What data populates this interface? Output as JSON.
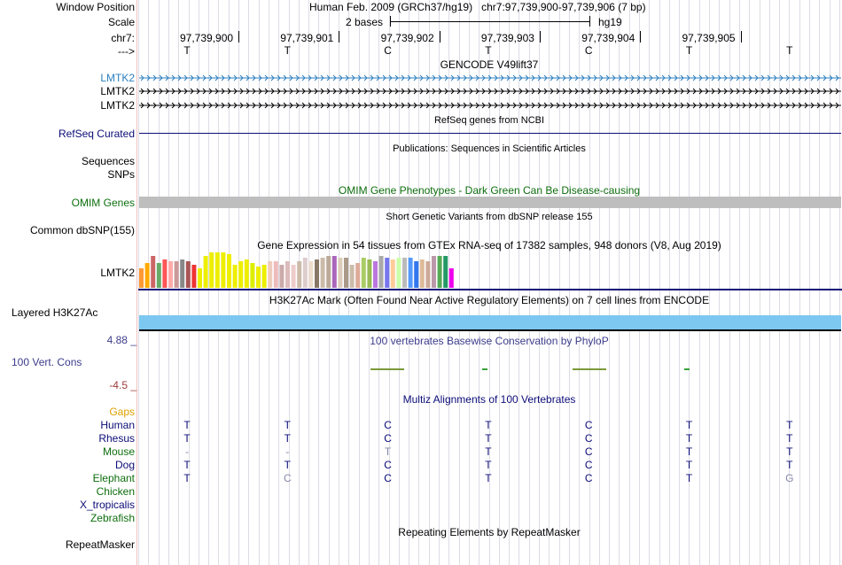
{
  "colors": {
    "gencode_blue": "#2b7fbf",
    "refseq_navy": "#0c0c78",
    "omim_green": "#0e6e0e",
    "omim_bar": "#bebebe",
    "h3k27ac_blue": "#7cc8f0",
    "cons_navy": "#3c3c8c",
    "cons_red": "#a03c3c",
    "gaps_orange": "#e0a000",
    "rhesus_navy": "#0c0c78",
    "species_green": "#0e6e0e"
  },
  "header": {
    "window_position_label": "Window Position",
    "window_position_value": "Human Feb. 2009 (GRCh37/hg19)   chr7:97,739,900-97,739,906 (7 bp)",
    "scale_label": "Scale",
    "scale_bases": "2 bases",
    "scale_assembly": "hg19",
    "chrom_label": "chr7:",
    "strand_label": "--->",
    "positions": [
      "97,739,900",
      "97,739,901",
      "97,739,902",
      "97,739,903",
      "97,739,904",
      "97,739,905"
    ],
    "bases": [
      "T",
      "T",
      "C",
      "T",
      "C",
      "T",
      "T"
    ]
  },
  "tracks": {
    "gencode_title": "GENCODE V49lift37",
    "gencode_rows": [
      "LMTK2",
      "LMTK2",
      "LMTK2"
    ],
    "refseq_title": "RefSeq genes from NCBI",
    "refseq_label": "RefSeq Curated",
    "pubs_title": "Publications: Sequences in Scientific Articles",
    "pubs_label1": "Sequences",
    "pubs_label2": "SNPs",
    "omim_title": "OMIM Gene Phenotypes - Dark Green Can Be Disease-causing",
    "omim_label": "OMIM Genes",
    "dbsnp_title": "Short Genetic Variants from dbSNP release 155",
    "dbsnp_label": "Common dbSNP(155)",
    "gtex_title": "Gene Expression in 54 tissues from GTEx RNA-seq of 17382 samples, 948 donors (V8, Aug 2019)",
    "gtex_label": "LMTK2",
    "h3k27ac_title": "H3K27Ac Mark (Often Found Near Active Regulatory Elements) on 7 cell lines from ENCODE",
    "h3k27ac_label": "Layered H3K27Ac",
    "cons_title": "100 vertebrates Basewise Conservation by PhyloP",
    "cons_label": "100 Vert. Cons",
    "cons_max": "4.88 _",
    "cons_min": "-4.5 _",
    "multiz_title": "Multiz Alignments of 100 Vertebrates",
    "repeat_title": "Repeating Elements by RepeatMasker",
    "repeat_label": "RepeatMasker"
  },
  "gtex_values": [
    0.22,
    0.28,
    0.36,
    0.28,
    0.32,
    0.3,
    0.3,
    0.32,
    0.3,
    0.26,
    0.22,
    0.36,
    0.4,
    0.4,
    0.4,
    0.38,
    0.26,
    0.3,
    0.32,
    0.28,
    0.24,
    0.26,
    0.3,
    0.3,
    0.26,
    0.3,
    0.26,
    0.3,
    0.34,
    0.3,
    0.32,
    0.34,
    0.36,
    0.36,
    0.34,
    0.34,
    0.26,
    0.28,
    0.34,
    0.32,
    0.3,
    0.36,
    0.34,
    0.32,
    0.34,
    0.34,
    0.34,
    0.3,
    0.32,
    0.3,
    0.36,
    0.36,
    0.36,
    0.22
  ],
  "gtex_colors": [
    "#ff9933",
    "#ffaa00",
    "#cc6666",
    "#66aa66",
    "#ff5555",
    "#ffaaaa",
    "#cc9999",
    "#888888",
    "#aa5555",
    "#ee3333",
    "#eeee00",
    "#eeee00",
    "#eeee00",
    "#eeee00",
    "#eeee00",
    "#eeee00",
    "#eeee00",
    "#eeee00",
    "#eeee00",
    "#ddee00",
    "#eeee00",
    "#eeee00",
    "#eeccbb",
    "#eebbbb",
    "#ccaaaa",
    "#ddbbbb",
    "#eecccc",
    "#ccbbaa",
    "#ddcccc",
    "#eeddcc",
    "#887766",
    "#ccbbaa",
    "#bbaa99",
    "#aa66bb",
    "#ddccbb",
    "#aa9988",
    "#ccbbaa",
    "#ddaa99",
    "#aacc66",
    "#99bb55",
    "#bb77dd",
    "#aaaaaa",
    "#7777ee",
    "#ffcc99",
    "#ccffaa",
    "#bbbbbb",
    "#5599ff",
    "#3377ee",
    "#ddbb99",
    "#ccaa99",
    "#bb99aa",
    "#55aa55",
    "#229966",
    "#ee00ee"
  ],
  "multiz": {
    "gaps_label": "Gaps",
    "species": [
      {
        "name": "Human",
        "bases": [
          "T",
          "T",
          "C",
          "T",
          "C",
          "T",
          "T"
        ]
      },
      {
        "name": "Rhesus",
        "bases": [
          "T",
          "T",
          "C",
          "T",
          "C",
          "T",
          "T"
        ]
      },
      {
        "name": "Mouse",
        "bases": [
          "-",
          "-",
          "T",
          "T",
          "C",
          "T",
          "T"
        ]
      },
      {
        "name": "Dog",
        "bases": [
          "T",
          "T",
          "C",
          "T",
          "C",
          "T",
          "T"
        ]
      },
      {
        "name": "Elephant",
        "bases": [
          "T",
          "C",
          "C",
          "T",
          "C",
          "T",
          "G"
        ]
      },
      {
        "name": "Chicken",
        "bases": [
          "",
          "",
          "",
          "",
          "",
          "",
          ""
        ]
      },
      {
        "name": "X_tropicalis",
        "bases": [
          "",
          "",
          "",
          "",
          "",
          "",
          ""
        ]
      },
      {
        "name": "Zebrafish",
        "bases": [
          "",
          "",
          "",
          "",
          "",
          "",
          ""
        ]
      }
    ]
  }
}
